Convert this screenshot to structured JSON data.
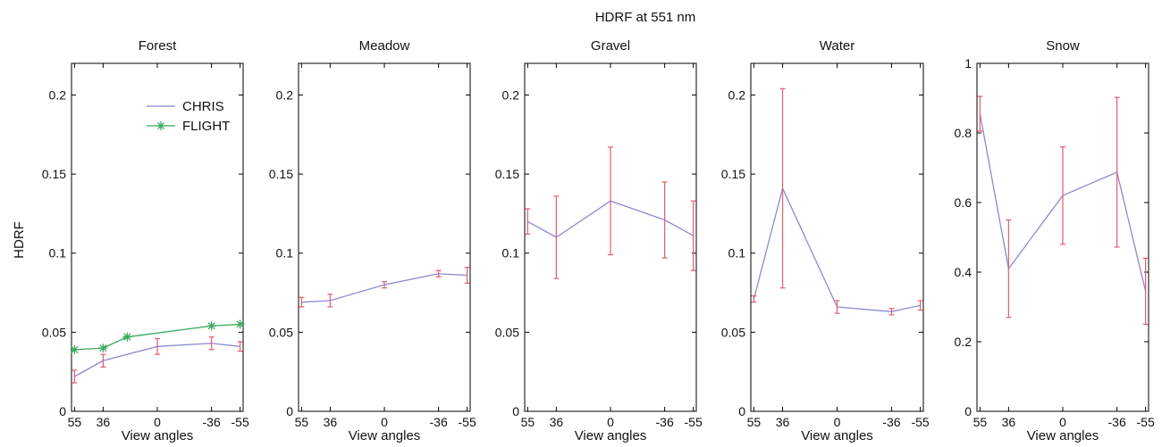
{
  "figure": {
    "suptitle": "HDRF at 551 nm",
    "ylabel": "HDRF",
    "xlabel": "View angles"
  },
  "colors": {
    "chris": "#8b8bd0",
    "flight": "#3aaa5c",
    "errorbar": "#e35d6a",
    "axis": "#000000"
  },
  "chart_data": [
    {
      "type": "line",
      "title": "Forest",
      "xlabel": "View angles",
      "ylabel": "HDRF",
      "x_ticks": [
        {
          "value": 55,
          "label": "55"
        },
        {
          "value": 36,
          "label": "36"
        },
        {
          "value": 0,
          "label": "0"
        },
        {
          "value": -36,
          "label": "-36"
        },
        {
          "value": -55,
          "label": "-55"
        }
      ],
      "y_ticks": [
        {
          "value": 0,
          "label": "0"
        },
        {
          "value": 0.05,
          "label": "0.05"
        },
        {
          "value": 0.1,
          "label": "0.1"
        },
        {
          "value": 0.15,
          "label": "0.15"
        },
        {
          "value": 0.2,
          "label": "0.2"
        }
      ],
      "xlim": [
        57,
        -57
      ],
      "ylim": [
        0,
        0.22
      ],
      "legend": {
        "position": "top-right",
        "entries": [
          "CHRIS",
          "FLIGHT"
        ]
      },
      "series": [
        {
          "name": "CHRIS",
          "style": "line-errorbar",
          "x": [
            55,
            36,
            0,
            -36,
            -55
          ],
          "y": [
            0.022,
            0.032,
            0.041,
            0.043,
            0.041
          ],
          "err": [
            0.004,
            0.004,
            0.005,
            0.004,
            0.003
          ]
        },
        {
          "name": "FLIGHT",
          "style": "line-star",
          "x": [
            55,
            36,
            20,
            -36,
            -55
          ],
          "y": [
            0.039,
            0.04,
            0.047,
            0.054,
            0.055
          ]
        }
      ]
    },
    {
      "type": "line",
      "title": "Meadow",
      "xlabel": "View angles",
      "x_ticks": [
        {
          "value": 55,
          "label": "55"
        },
        {
          "value": 36,
          "label": "36"
        },
        {
          "value": 0,
          "label": "0"
        },
        {
          "value": -36,
          "label": "-36"
        },
        {
          "value": -55,
          "label": "-55"
        }
      ],
      "y_ticks": [
        {
          "value": 0,
          "label": "0"
        },
        {
          "value": 0.05,
          "label": "0.05"
        },
        {
          "value": 0.1,
          "label": "0.1"
        },
        {
          "value": 0.15,
          "label": "0.15"
        },
        {
          "value": 0.2,
          "label": "0.2"
        }
      ],
      "xlim": [
        57,
        -57
      ],
      "ylim": [
        0,
        0.22
      ],
      "series": [
        {
          "name": "CHRIS",
          "style": "line-errorbar",
          "x": [
            55,
            36,
            0,
            -36,
            -55
          ],
          "y": [
            0.069,
            0.07,
            0.08,
            0.087,
            0.086
          ],
          "err": [
            0.003,
            0.004,
            0.002,
            0.002,
            0.005
          ]
        }
      ]
    },
    {
      "type": "line",
      "title": "Gravel",
      "xlabel": "View angles",
      "x_ticks": [
        {
          "value": 55,
          "label": "55"
        },
        {
          "value": 36,
          "label": "36"
        },
        {
          "value": 0,
          "label": "0"
        },
        {
          "value": -36,
          "label": "-36"
        },
        {
          "value": -55,
          "label": "-55"
        }
      ],
      "y_ticks": [
        {
          "value": 0,
          "label": "0"
        },
        {
          "value": 0.05,
          "label": "0.05"
        },
        {
          "value": 0.1,
          "label": "0.1"
        },
        {
          "value": 0.15,
          "label": "0.15"
        },
        {
          "value": 0.2,
          "label": "0.2"
        }
      ],
      "xlim": [
        57,
        -57
      ],
      "ylim": [
        0,
        0.22
      ],
      "series": [
        {
          "name": "CHRIS",
          "style": "line-errorbar",
          "x": [
            55,
            36,
            0,
            -36,
            -55
          ],
          "y": [
            0.12,
            0.11,
            0.133,
            0.121,
            0.111
          ],
          "err": [
            0.008,
            0.026,
            0.034,
            0.024,
            0.022
          ]
        }
      ]
    },
    {
      "type": "line",
      "title": "Water",
      "xlabel": "View angles",
      "x_ticks": [
        {
          "value": 55,
          "label": "55"
        },
        {
          "value": 36,
          "label": "36"
        },
        {
          "value": 0,
          "label": "0"
        },
        {
          "value": -36,
          "label": "-36"
        },
        {
          "value": -55,
          "label": "-55"
        }
      ],
      "y_ticks": [
        {
          "value": 0,
          "label": "0"
        },
        {
          "value": 0.05,
          "label": "0.05"
        },
        {
          "value": 0.1,
          "label": "0.1"
        },
        {
          "value": 0.15,
          "label": "0.15"
        },
        {
          "value": 0.2,
          "label": "0.2"
        }
      ],
      "xlim": [
        57,
        -57
      ],
      "ylim": [
        0,
        0.22
      ],
      "series": [
        {
          "name": "CHRIS",
          "style": "line-errorbar",
          "x": [
            55,
            36,
            0,
            -36,
            -55
          ],
          "y": [
            0.071,
            0.141,
            0.066,
            0.063,
            0.067
          ],
          "err": [
            0.002,
            0.063,
            0.004,
            0.002,
            0.003
          ]
        }
      ]
    },
    {
      "type": "line",
      "title": "Snow",
      "xlabel": "View angles",
      "x_ticks": [
        {
          "value": 55,
          "label": "55"
        },
        {
          "value": 36,
          "label": "36"
        },
        {
          "value": 0,
          "label": "0"
        },
        {
          "value": -36,
          "label": "-36"
        },
        {
          "value": -55,
          "label": "-55"
        }
      ],
      "y_ticks": [
        {
          "value": 0,
          "label": "0"
        },
        {
          "value": 0.2,
          "label": "0.2"
        },
        {
          "value": 0.4,
          "label": "0.4"
        },
        {
          "value": 0.6,
          "label": "0.6"
        },
        {
          "value": 0.8,
          "label": "0.8"
        },
        {
          "value": 1,
          "label": "1"
        }
      ],
      "xlim": [
        57,
        -57
      ],
      "ylim": [
        0,
        1
      ],
      "series": [
        {
          "name": "CHRIS",
          "style": "line-errorbar",
          "x": [
            55,
            36,
            0,
            -36,
            -55
          ],
          "y": [
            0.855,
            0.41,
            0.62,
            0.687,
            0.345
          ],
          "err": [
            0.05,
            0.14,
            0.14,
            0.215,
            0.095
          ]
        }
      ]
    }
  ]
}
